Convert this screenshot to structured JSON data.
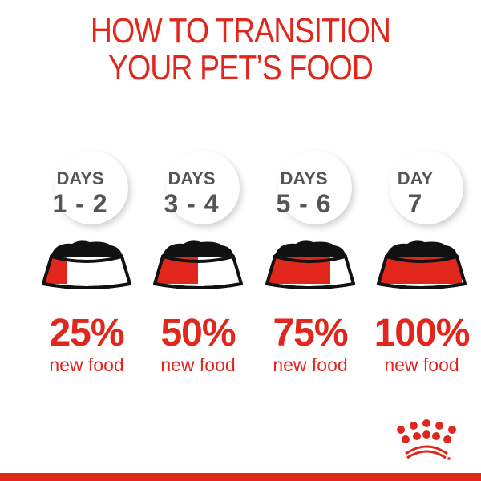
{
  "title": {
    "line1": "HOW TO TRANSITION",
    "line2": "YOUR PET’S FOOD"
  },
  "steps": [
    {
      "label": "DAYS",
      "range": "1 - 2",
      "percent": "25%",
      "caption": "new food",
      "fraction": 0.25
    },
    {
      "label": "DAYS",
      "range": "3 - 4",
      "percent": "50%",
      "caption": "new food",
      "fraction": 0.5
    },
    {
      "label": "DAYS",
      "range": "5 - 6",
      "percent": "75%",
      "caption": "new food",
      "fraction": 0.75
    },
    {
      "label": "DAY",
      "range": "7",
      "percent": "100%",
      "caption": "new food",
      "fraction": 1.0
    }
  ],
  "colors": {
    "brand_red": "#e1261c",
    "text_gray": "#555555",
    "food": "#111111"
  },
  "logo": "royal-canin-crown-logo"
}
